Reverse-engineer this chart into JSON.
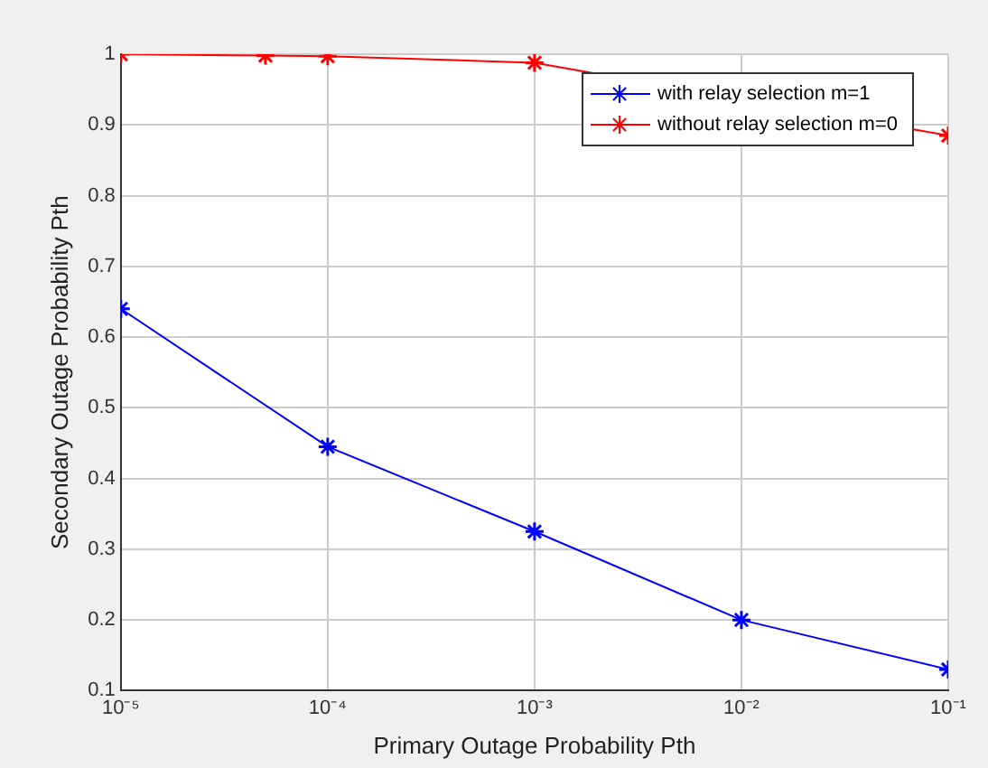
{
  "chart_data": {
    "type": "line",
    "xlabel": "Primary Outage Probability Pth",
    "ylabel": "Secondary Outage Probability Pth",
    "x": [
      1e-05,
      0.0001,
      0.001,
      0.01,
      0.1
    ],
    "series": [
      {
        "name": "with relay selection m=1",
        "color": "#0000ff",
        "values": [
          0.64,
          0.445,
          0.325,
          0.2,
          0.13
        ]
      },
      {
        "name": "without relay selection m=0",
        "color": "#ff0000",
        "x": [
          1e-05,
          5e-05,
          0.0001,
          0.001,
          0.1
        ],
        "values": [
          1.0,
          0.998,
          0.997,
          0.988,
          0.885
        ]
      }
    ],
    "log": "x",
    "xlim": [
      1e-05,
      0.1
    ],
    "xticks": [
      {
        "value": 1e-05,
        "label": "10⁻⁵"
      },
      {
        "value": 0.0001,
        "label": "10⁻⁴"
      },
      {
        "value": 0.001,
        "label": "10⁻³"
      },
      {
        "value": 0.01,
        "label": "10⁻²"
      },
      {
        "value": 0.1,
        "label": "10⁻¹"
      }
    ],
    "ylim": [
      0.1,
      1
    ],
    "yticks": [
      0.1,
      0.2,
      0.3,
      0.4,
      0.5,
      0.6,
      0.7,
      0.8,
      0.9,
      1
    ],
    "grid": true,
    "legend": "top right",
    "marker": "cross",
    "line_style": "solid"
  }
}
